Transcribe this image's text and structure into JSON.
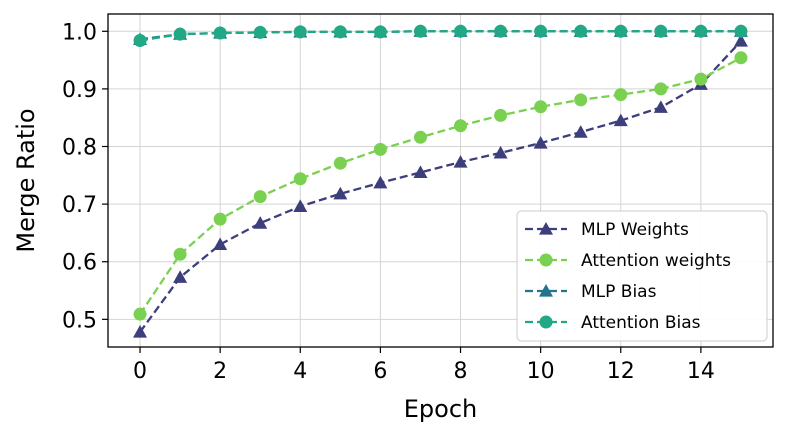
{
  "chart_data": {
    "type": "line",
    "xlabel": "Epoch",
    "ylabel": "Merge Ratio",
    "xlim": [
      -0.8,
      15.8
    ],
    "ylim": [
      0.452,
      1.03
    ],
    "xticks": [
      0,
      2,
      4,
      6,
      8,
      10,
      12,
      14
    ],
    "yticks": [
      0.5,
      0.6,
      0.7,
      0.8,
      0.9,
      1.0
    ],
    "ytick_labels": [
      "0.5",
      "0.6",
      "0.7",
      "0.8",
      "0.9",
      "1.0"
    ],
    "grid": true,
    "legend_position": "lower-right",
    "x": [
      0,
      1,
      2,
      3,
      4,
      5,
      6,
      7,
      8,
      9,
      10,
      11,
      12,
      13,
      14,
      15
    ],
    "series": [
      {
        "name": "MLP Weights",
        "marker": "triangle",
        "color": "#3d3e7c",
        "values": [
          0.478,
          0.573,
          0.63,
          0.667,
          0.696,
          0.718,
          0.737,
          0.755,
          0.773,
          0.789,
          0.806,
          0.825,
          0.845,
          0.868,
          0.908,
          0.983
        ]
      },
      {
        "name": "Attention weights",
        "marker": "circle",
        "color": "#7ad151",
        "values": [
          0.509,
          0.613,
          0.674,
          0.713,
          0.744,
          0.771,
          0.795,
          0.816,
          0.836,
          0.854,
          0.869,
          0.881,
          0.89,
          0.9,
          0.917,
          0.954
        ]
      },
      {
        "name": "MLP Bias",
        "marker": "triangle",
        "color": "#21758c",
        "values": [
          0.986,
          0.995,
          0.997,
          0.998,
          0.999,
          0.999,
          0.999,
          1.0,
          1.0,
          1.0,
          1.0,
          1.0,
          1.0,
          1.0,
          1.0,
          1.0
        ]
      },
      {
        "name": "Attention Bias",
        "marker": "circle",
        "color": "#22a884",
        "values": [
          0.984,
          0.995,
          0.997,
          0.998,
          0.999,
          0.999,
          0.999,
          1.0,
          1.0,
          1.0,
          1.0,
          1.0,
          1.0,
          1.0,
          1.0,
          1.0
        ]
      }
    ]
  }
}
